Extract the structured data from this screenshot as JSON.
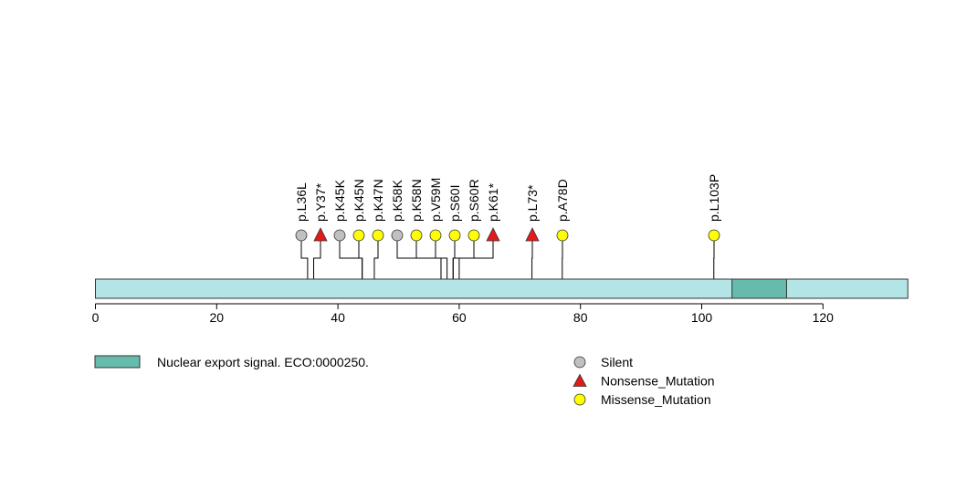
{
  "chart_data": {
    "type": "lollipop",
    "protein_length": 134,
    "x_ticks": [
      {
        "value": 0,
        "label": "0"
      },
      {
        "value": 20,
        "label": "20"
      },
      {
        "value": 40,
        "label": "40"
      },
      {
        "value": 60,
        "label": "60"
      },
      {
        "value": 80,
        "label": "80"
      },
      {
        "value": 100,
        "label": "100"
      },
      {
        "value": 120,
        "label": "120"
      }
    ],
    "domains": [
      {
        "name": "Nuclear export signal. ECO:0000250.",
        "start": 105,
        "end": 114,
        "color": "#66bbad"
      }
    ],
    "backbone_color": "#b3e5e7",
    "mutations": [
      {
        "label": "p.L36L",
        "position": 35,
        "type": "Silent"
      },
      {
        "label": "p.Y37*",
        "position": 36,
        "type": "Nonsense_Mutation"
      },
      {
        "label": "p.K45K",
        "position": 44,
        "type": "Silent"
      },
      {
        "label": "p.K45N",
        "position": 44,
        "type": "Missense_Mutation"
      },
      {
        "label": "p.K47N",
        "position": 46,
        "type": "Missense_Mutation"
      },
      {
        "label": "p.K58K",
        "position": 57,
        "type": "Silent"
      },
      {
        "label": "p.K58N",
        "position": 57,
        "type": "Missense_Mutation"
      },
      {
        "label": "p.V59M",
        "position": 58,
        "type": "Missense_Mutation"
      },
      {
        "label": "p.S60I",
        "position": 59,
        "type": "Missense_Mutation"
      },
      {
        "label": "p.S60R",
        "position": 59,
        "type": "Missense_Mutation"
      },
      {
        "label": "p.K61*",
        "position": 60,
        "type": "Nonsense_Mutation"
      },
      {
        "label": "p.L73*",
        "position": 72,
        "type": "Nonsense_Mutation"
      },
      {
        "label": "p.A78D",
        "position": 77,
        "type": "Missense_Mutation"
      },
      {
        "label": "p.L103P",
        "position": 102,
        "type": "Missense_Mutation"
      }
    ],
    "mutation_types": [
      {
        "name": "Silent",
        "color": "#c0c0c0",
        "shape": "circle"
      },
      {
        "name": "Nonsense_Mutation",
        "color": "#e31a1c",
        "shape": "triangle"
      },
      {
        "name": "Missense_Mutation",
        "color": "#ffff00",
        "shape": "circle"
      }
    ]
  }
}
